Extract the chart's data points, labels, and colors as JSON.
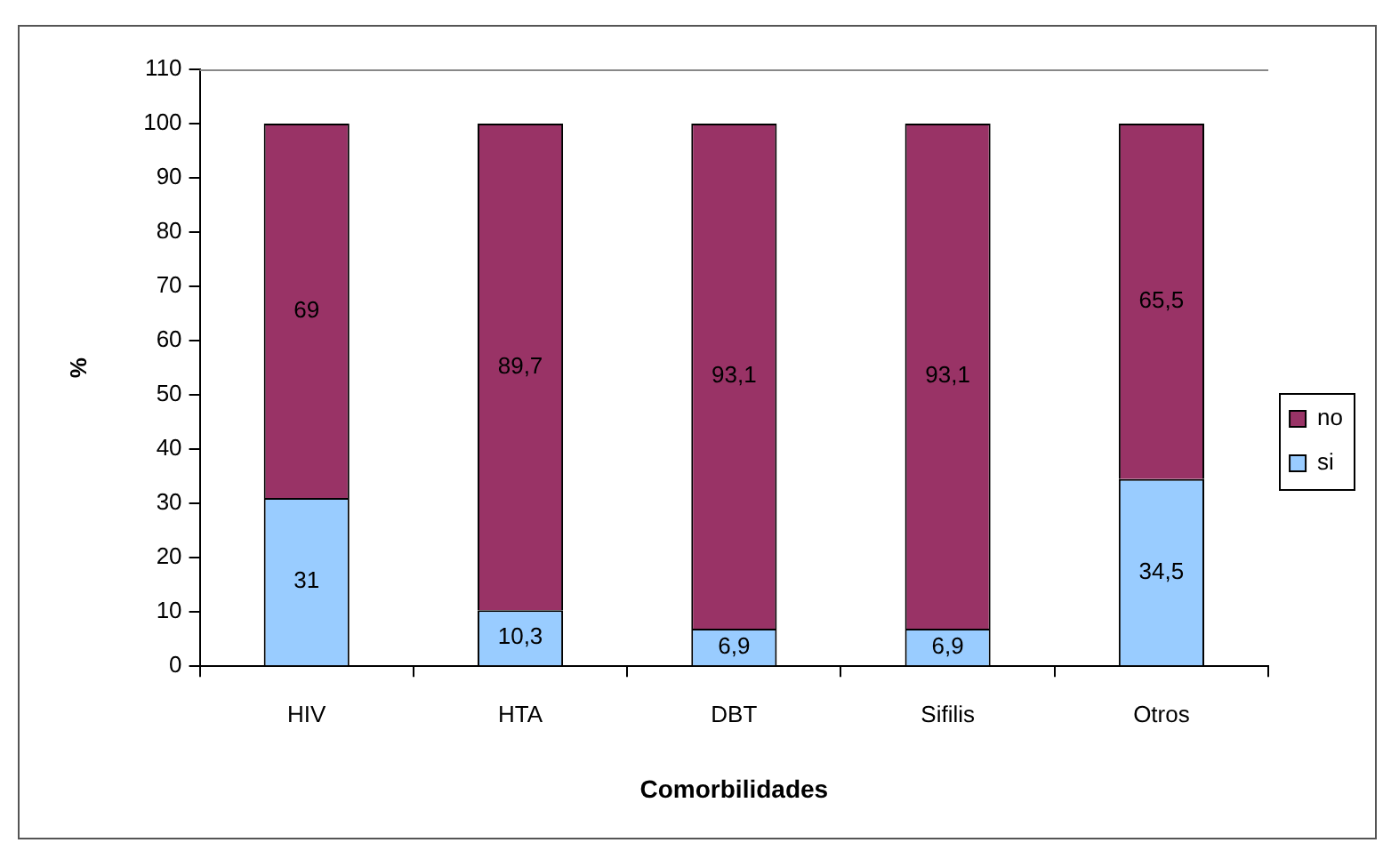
{
  "chart_data": {
    "type": "bar",
    "stacked": true,
    "xlabel": "Comorbilidades",
    "ylabel": "%",
    "categories": [
      "HIV",
      "HTA",
      "DBT",
      "Sifilis",
      "Otros"
    ],
    "series": [
      {
        "name": "si",
        "color": "#99ccff",
        "values": [
          31,
          10.3,
          6.9,
          6.9,
          34.5
        ],
        "value_labels": [
          "31",
          "10,3",
          "6,9",
          "6,9",
          "34,5"
        ]
      },
      {
        "name": "no",
        "color": "#993366",
        "values": [
          69,
          89.7,
          93.1,
          93.1,
          65.5
        ],
        "value_labels": [
          "69",
          "89,7",
          "93,1",
          "93,1",
          "65,5"
        ]
      }
    ],
    "ylim": [
      0,
      110
    ],
    "yticks": [
      0,
      10,
      20,
      30,
      40,
      50,
      60,
      70,
      80,
      90,
      100,
      110
    ],
    "grid": false,
    "legend": "right"
  }
}
